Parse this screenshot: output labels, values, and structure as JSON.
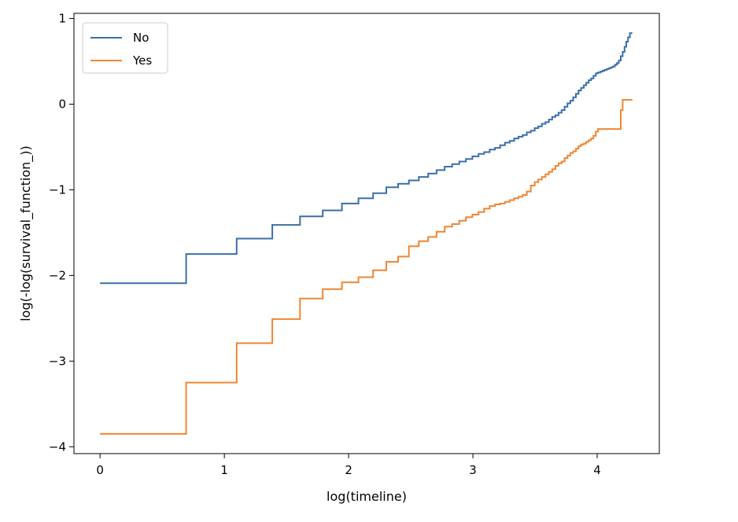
{
  "chart_data": {
    "type": "line",
    "step": true,
    "title": "",
    "xlabel": "log(timeline)",
    "ylabel": "log(-log(survival_function_))",
    "xlim": [
      -0.21,
      4.5
    ],
    "ylim": [
      -4.08,
      1.06
    ],
    "xticks": [
      0,
      1,
      2,
      3,
      4
    ],
    "xtick_labels": [
      "0",
      "1",
      "2",
      "3",
      "4"
    ],
    "yticks": [
      -4,
      -3,
      -2,
      -1,
      0,
      1
    ],
    "ytick_labels": [
      "−4",
      "−3",
      "−2",
      "−1",
      "0",
      "1"
    ],
    "grid": false,
    "legend_position": "top-left",
    "series": [
      {
        "name": "No",
        "color": "#3a6fa8",
        "x": [
          0,
          0.693,
          1.099,
          1.386,
          1.609,
          1.792,
          1.946,
          2.079,
          2.197,
          2.303,
          2.398,
          2.485,
          2.565,
          2.64,
          2.708,
          2.773,
          2.833,
          2.89,
          2.944,
          2.996,
          3.045,
          3.091,
          3.135,
          3.178,
          3.219,
          3.258,
          3.296,
          3.332,
          3.367,
          3.401,
          3.434,
          3.466,
          3.497,
          3.526,
          3.555,
          3.584,
          3.611,
          3.638,
          3.664,
          3.689,
          3.714,
          3.738,
          3.761,
          3.784,
          3.807,
          3.829,
          3.85,
          3.871,
          3.892,
          3.912,
          3.932,
          3.951,
          3.97,
          3.989,
          4.007,
          4.025,
          4.043,
          4.06,
          4.078,
          4.094,
          4.111,
          4.127,
          4.143,
          4.159,
          4.174,
          4.19,
          4.205,
          4.22,
          4.234,
          4.248,
          4.263
        ],
        "y": [
          -2.09,
          -1.75,
          -1.57,
          -1.41,
          -1.31,
          -1.24,
          -1.16,
          -1.1,
          -1.04,
          -0.97,
          -0.93,
          -0.89,
          -0.85,
          -0.81,
          -0.77,
          -0.73,
          -0.7,
          -0.67,
          -0.64,
          -0.61,
          -0.58,
          -0.56,
          -0.53,
          -0.51,
          -0.48,
          -0.45,
          -0.43,
          -0.4,
          -0.38,
          -0.36,
          -0.33,
          -0.31,
          -0.28,
          -0.26,
          -0.23,
          -0.21,
          -0.18,
          -0.15,
          -0.13,
          -0.1,
          -0.07,
          -0.03,
          0.01,
          0.04,
          0.08,
          0.12,
          0.16,
          0.19,
          0.22,
          0.25,
          0.28,
          0.3,
          0.33,
          0.36,
          0.37,
          0.38,
          0.39,
          0.4,
          0.41,
          0.42,
          0.43,
          0.44,
          0.46,
          0.48,
          0.51,
          0.56,
          0.61,
          0.67,
          0.73,
          0.78,
          0.83
        ]
      },
      {
        "name": "Yes",
        "color": "#ef8633",
        "x": [
          0,
          0.693,
          1.099,
          1.386,
          1.609,
          1.792,
          1.946,
          2.079,
          2.197,
          2.303,
          2.398,
          2.485,
          2.565,
          2.64,
          2.708,
          2.773,
          2.833,
          2.89,
          2.944,
          2.996,
          3.045,
          3.091,
          3.135,
          3.178,
          3.219,
          3.258,
          3.296,
          3.332,
          3.367,
          3.401,
          3.434,
          3.466,
          3.497,
          3.526,
          3.555,
          3.584,
          3.611,
          3.638,
          3.664,
          3.689,
          3.714,
          3.738,
          3.761,
          3.784,
          3.807,
          3.829,
          3.85,
          3.871,
          3.892,
          3.912,
          3.932,
          3.951,
          3.97,
          3.989,
          4.007,
          4.025,
          4.043,
          4.06,
          4.078,
          4.094,
          4.111,
          4.127,
          4.143,
          4.159,
          4.174,
          4.19,
          4.205,
          4.22,
          4.234,
          4.248,
          4.263
        ],
        "y": [
          -3.85,
          -3.25,
          -2.79,
          -2.51,
          -2.27,
          -2.16,
          -2.08,
          -2.02,
          -1.94,
          -1.84,
          -1.78,
          -1.66,
          -1.6,
          -1.55,
          -1.49,
          -1.43,
          -1.4,
          -1.36,
          -1.32,
          -1.29,
          -1.26,
          -1.22,
          -1.19,
          -1.17,
          -1.16,
          -1.14,
          -1.12,
          -1.1,
          -1.08,
          -1.06,
          -1.02,
          -0.95,
          -0.91,
          -0.88,
          -0.85,
          -0.82,
          -0.79,
          -0.76,
          -0.72,
          -0.69,
          -0.67,
          -0.63,
          -0.6,
          -0.57,
          -0.55,
          -0.52,
          -0.49,
          -0.47,
          -0.46,
          -0.44,
          -0.42,
          -0.4,
          -0.37,
          -0.32,
          -0.29,
          -0.29,
          -0.29,
          -0.29,
          -0.29,
          -0.29,
          -0.29,
          -0.29,
          -0.29,
          -0.29,
          -0.29,
          -0.07,
          0.05,
          0.05,
          0.05,
          0.05,
          0.05
        ]
      }
    ]
  }
}
